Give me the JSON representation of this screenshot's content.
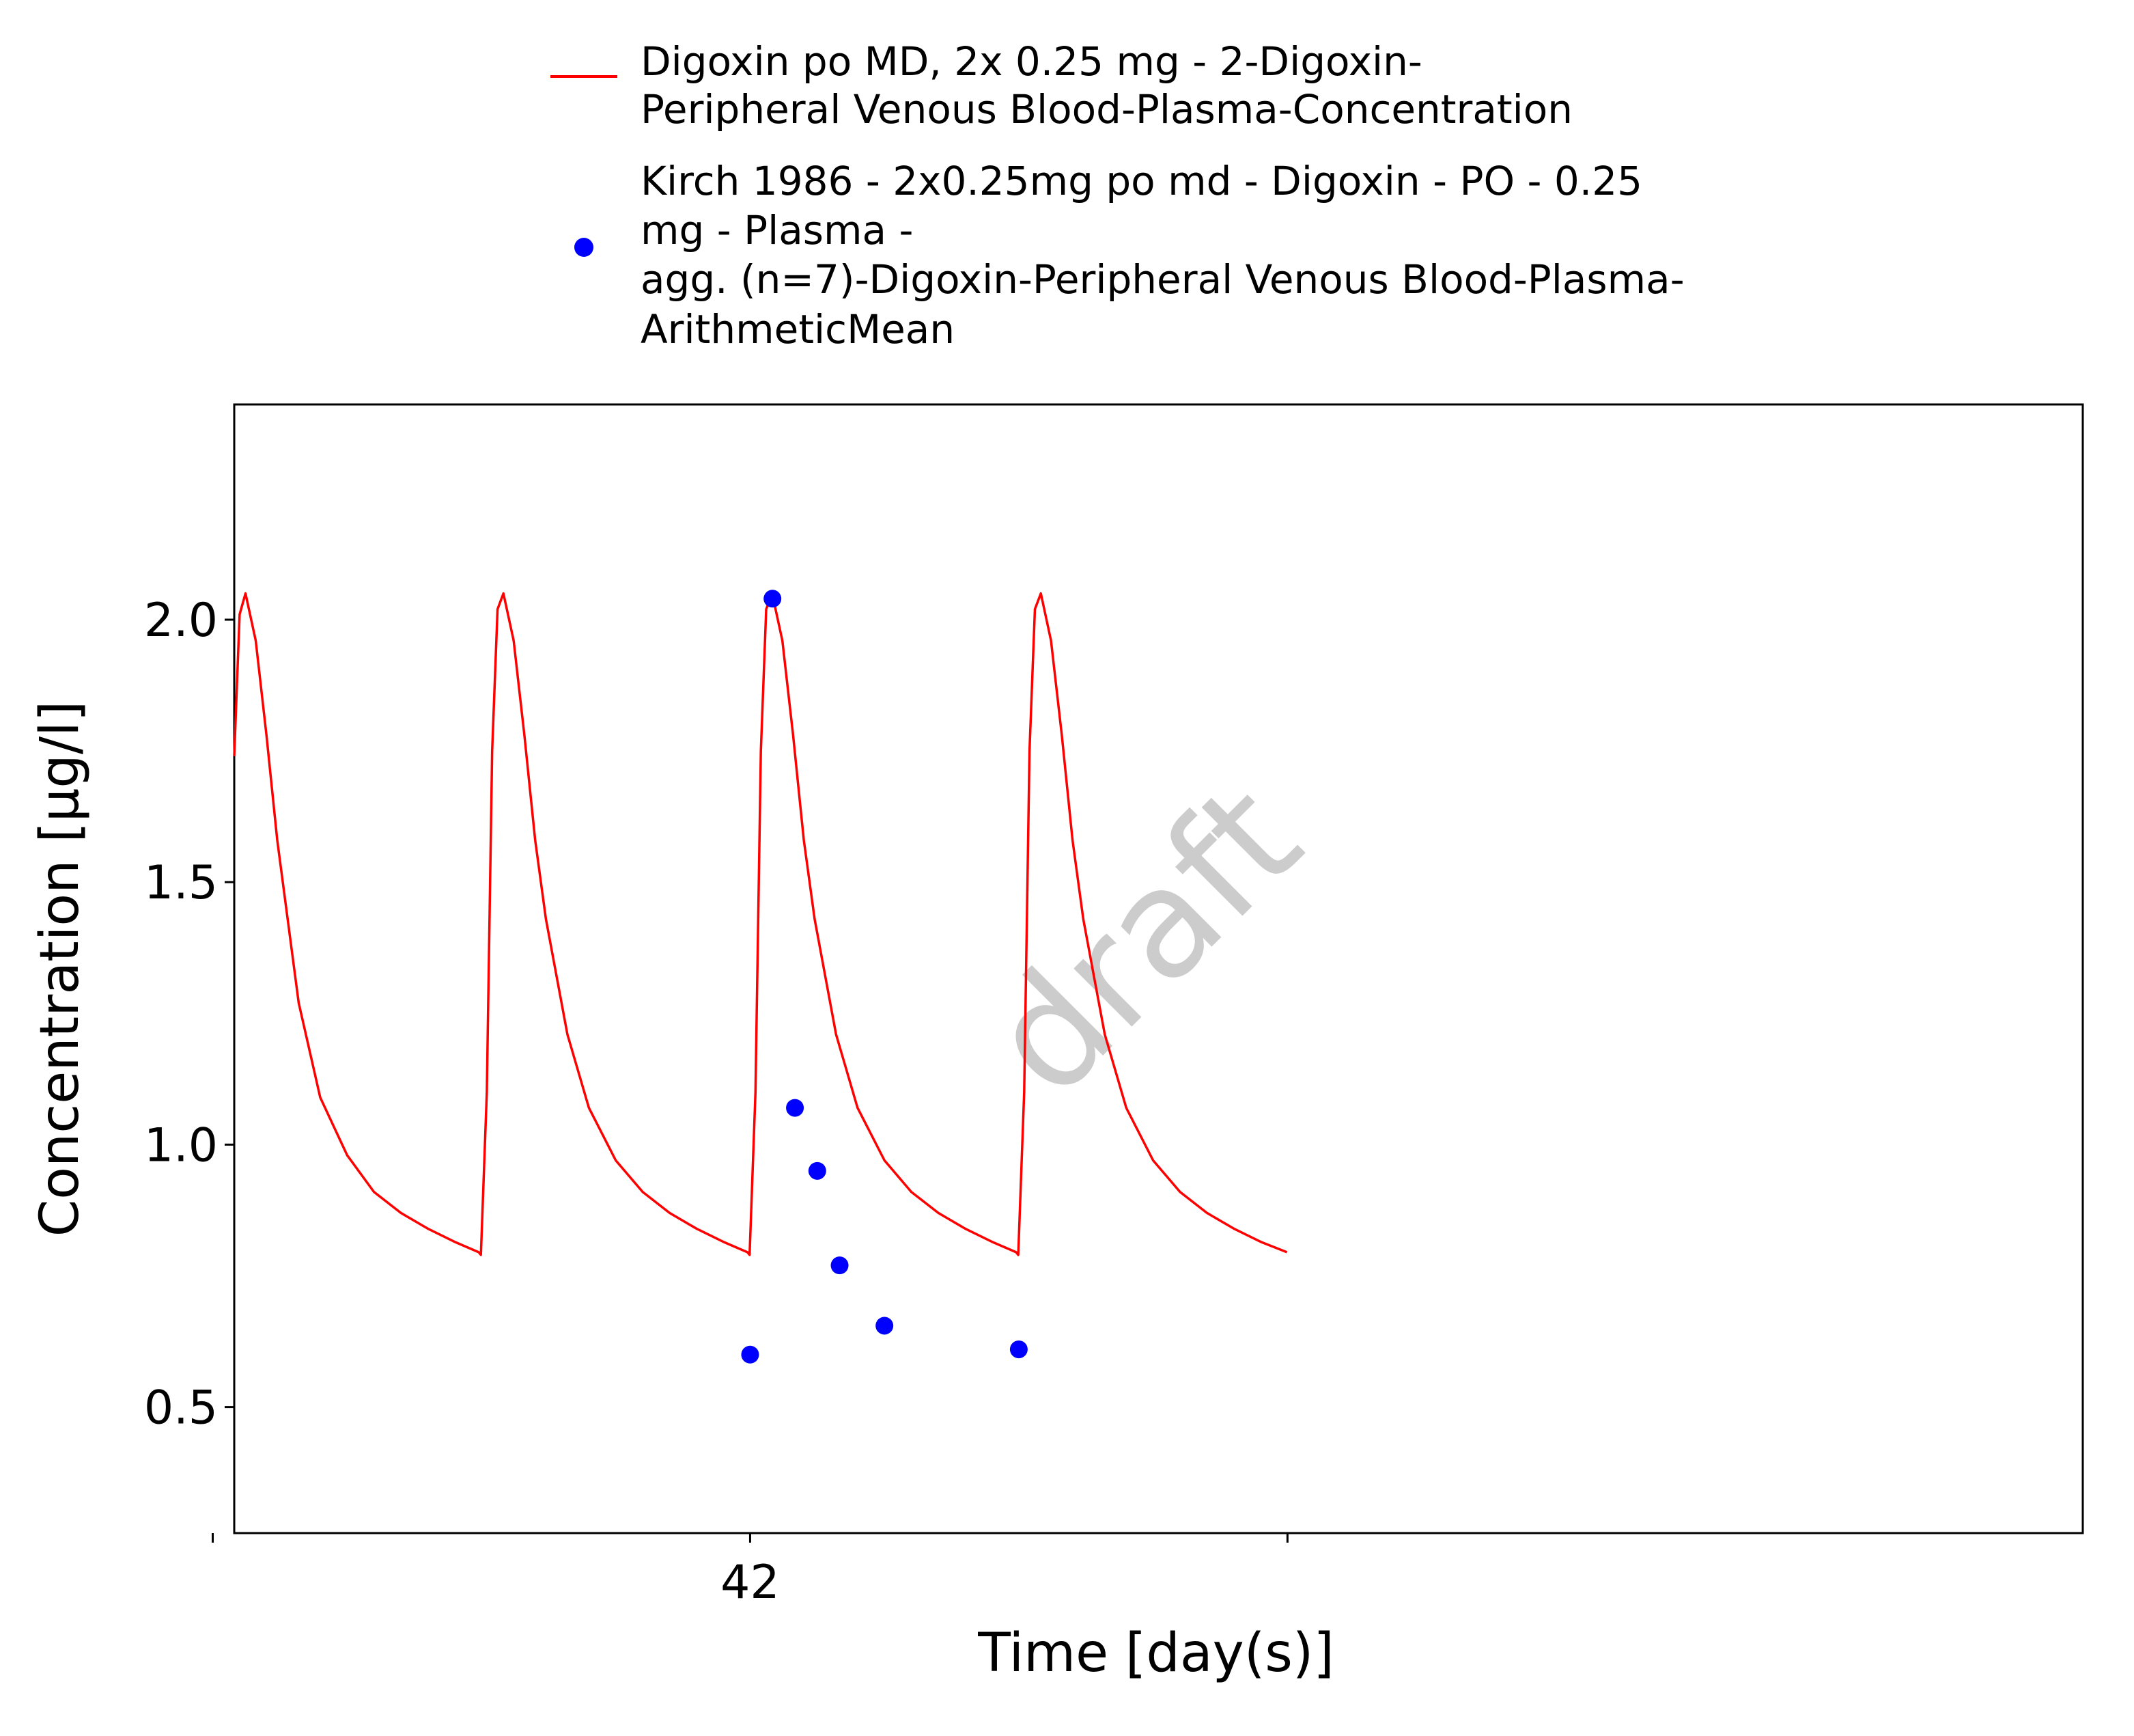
{
  "chart_data": {
    "type": "line",
    "title": "",
    "xlabel": "Time [day(s)]",
    "ylabel": "Concentration [µg/l]",
    "xlim": [
      41.52,
      43.24
    ],
    "ylim": [
      0.26,
      2.41
    ],
    "x_ticks": [
      41.5,
      42.0,
      42.5
    ],
    "x_tick_labels": [
      "",
      "42",
      ""
    ],
    "y_ticks": [
      0.5,
      1.0,
      1.5,
      2.0
    ],
    "y_tick_labels": [
      "0.5",
      "1.0",
      "1.5",
      "2.0"
    ],
    "grid": false,
    "legend_position": "top",
    "watermark": "draft",
    "series": [
      {
        "name": "Digoxin po MD, 2x 0.25 mg - 2-Digoxin-Peripheral Venous Blood-Plasma-Concentration",
        "type": "line",
        "color": "#ff0000",
        "legend_lines": [
          "Digoxin po MD, 2x 0.25 mg - 2-Digoxin-",
          "Peripheral Venous Blood-Plasma-Concentration"
        ],
        "dose_times": [
          41.5,
          41.75,
          42.0,
          42.25
        ],
        "peak": 2.05,
        "trough": 0.79,
        "end_time": 42.25,
        "x": [
          41.52,
          41.525,
          41.5305,
          41.54,
          41.55,
          41.56,
          41.58,
          41.6,
          41.625,
          41.65,
          41.675,
          41.7,
          41.725,
          41.7475,
          41.7495,
          41.755,
          41.76,
          41.765,
          41.7705,
          41.78,
          41.79,
          41.8,
          41.81,
          41.83,
          41.85,
          41.875,
          41.9,
          41.925,
          41.95,
          41.975,
          41.9975,
          41.9995,
          42.005,
          42.01,
          42.015,
          42.0205,
          42.03,
          42.04,
          42.05,
          42.06,
          42.08,
          42.1,
          42.125,
          42.15,
          42.175,
          42.2,
          42.225,
          42.2475,
          42.2495,
          42.255,
          42.26,
          42.265,
          42.2705,
          42.28,
          42.29,
          42.3,
          42.31,
          42.33,
          42.35,
          42.375,
          42.4,
          42.425,
          42.45,
          42.475,
          42.4995
        ],
        "y": [
          1.74,
          2.01,
          2.05,
          1.96,
          1.78,
          1.58,
          1.27,
          1.09,
          0.98,
          0.91,
          0.87,
          0.84,
          0.815,
          0.795,
          0.79,
          1.1,
          1.75,
          2.02,
          2.05,
          1.96,
          1.78,
          1.58,
          1.43,
          1.21,
          1.07,
          0.97,
          0.91,
          0.87,
          0.84,
          0.815,
          0.795,
          0.79,
          1.1,
          1.75,
          2.02,
          2.05,
          1.96,
          1.78,
          1.58,
          1.43,
          1.21,
          1.07,
          0.97,
          0.91,
          0.87,
          0.84,
          0.815,
          0.795,
          0.79,
          1.1,
          1.75,
          2.02,
          2.05,
          1.96,
          1.78,
          1.58,
          1.43,
          1.21,
          1.07,
          0.97,
          0.91,
          0.87,
          0.84,
          0.815,
          0.795
        ]
      },
      {
        "name": "Kirch 1986 - 2x0.25mg po md - Digoxin - PO - 0.25 mg - Plasma - agg. (n=7)-Digoxin-Peripheral Venous Blood-Plasma-ArithmeticMean",
        "type": "scatter",
        "color": "#0000ff",
        "legend_lines": [
          "Kirch 1986 - 2x0.25mg po md - Digoxin - PO - 0.25",
          "mg - Plasma -",
          "agg. (n=7)-Digoxin-Peripheral Venous Blood-Plasma-",
          "ArithmeticMean"
        ],
        "x": [
          42.0,
          42.0208,
          42.0417,
          42.0625,
          42.0833,
          42.125,
          42.25
        ],
        "y": [
          0.6,
          2.04,
          1.07,
          0.95,
          0.77,
          0.655,
          0.61
        ]
      }
    ]
  }
}
